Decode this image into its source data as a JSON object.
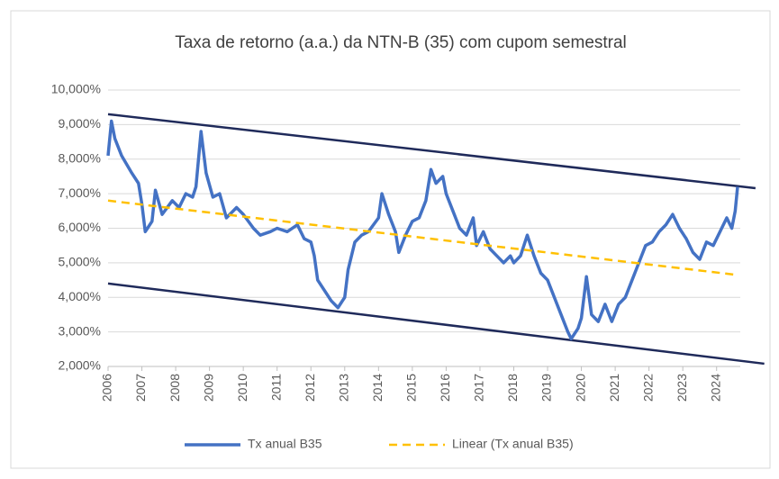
{
  "chart_data": {
    "type": "line",
    "title": "Taxa de retorno (a.a.) da NTN-B (35) com cupom semestral",
    "xlim": [
      2006,
      2024.7
    ],
    "xticks": [
      2006,
      2007,
      2008,
      2009,
      2010,
      2011,
      2012,
      2013,
      2014,
      2015,
      2016,
      2017,
      2018,
      2019,
      2020,
      2021,
      2022,
      2023,
      2024
    ],
    "ylim": [
      2,
      10
    ],
    "yticks": [
      {
        "value": 2,
        "label": "2,000%"
      },
      {
        "value": 3,
        "label": "3,000%"
      },
      {
        "value": 4,
        "label": "4,000%"
      },
      {
        "value": 5,
        "label": "5,000%"
      },
      {
        "value": 6,
        "label": "6,000%"
      },
      {
        "value": 7,
        "label": "7,000%"
      },
      {
        "value": 8,
        "label": "8,000%"
      },
      {
        "value": 9,
        "label": "9,000%"
      },
      {
        "value": 10,
        "label": "10,000%"
      }
    ],
    "grid": true,
    "legend": "bottom",
    "series": [
      {
        "name": "Tx anual B35",
        "color": "#4472c4",
        "style": "solid",
        "x": [
          2006.0,
          2006.1,
          2006.2,
          2006.4,
          2006.7,
          2006.9,
          2007.0,
          2007.1,
          2007.3,
          2007.4,
          2007.6,
          2007.9,
          2008.1,
          2008.3,
          2008.5,
          2008.6,
          2008.75,
          2008.9,
          2009.1,
          2009.3,
          2009.5,
          2009.8,
          2010.0,
          2010.3,
          2010.5,
          2010.8,
          2011.0,
          2011.3,
          2011.6,
          2011.8,
          2012.0,
          2012.1,
          2012.2,
          2012.4,
          2012.6,
          2012.8,
          2013.0,
          2013.1,
          2013.3,
          2013.5,
          2013.7,
          2014.0,
          2014.1,
          2014.3,
          2014.5,
          2014.6,
          2014.8,
          2015.0,
          2015.2,
          2015.4,
          2015.55,
          2015.7,
          2015.9,
          2016.0,
          2016.2,
          2016.4,
          2016.6,
          2016.8,
          2016.9,
          2017.1,
          2017.3,
          2017.5,
          2017.7,
          2017.9,
          2018.0,
          2018.2,
          2018.4,
          2018.6,
          2018.8,
          2019.0,
          2019.2,
          2019.4,
          2019.6,
          2019.7,
          2019.9,
          2020.0,
          2020.15,
          2020.3,
          2020.5,
          2020.7,
          2020.9,
          2021.1,
          2021.3,
          2021.5,
          2021.7,
          2021.9,
          2022.1,
          2022.3,
          2022.5,
          2022.7,
          2022.9,
          2023.1,
          2023.3,
          2023.5,
          2023.7,
          2023.9,
          2024.1,
          2024.3,
          2024.45,
          2024.55,
          2024.62
        ],
        "values": [
          8.1,
          9.1,
          8.6,
          8.1,
          7.6,
          7.3,
          6.7,
          5.9,
          6.2,
          7.1,
          6.4,
          6.8,
          6.6,
          7.0,
          6.9,
          7.2,
          8.8,
          7.6,
          6.9,
          7.0,
          6.3,
          6.6,
          6.4,
          6.0,
          5.8,
          5.9,
          6.0,
          5.9,
          6.1,
          5.7,
          5.6,
          5.2,
          4.5,
          4.2,
          3.9,
          3.7,
          4.0,
          4.8,
          5.6,
          5.8,
          5.9,
          6.3,
          7.0,
          6.4,
          5.9,
          5.3,
          5.8,
          6.2,
          6.3,
          6.8,
          7.7,
          7.3,
          7.5,
          7.0,
          6.5,
          6.0,
          5.8,
          6.3,
          5.5,
          5.9,
          5.4,
          5.2,
          5.0,
          5.2,
          5.0,
          5.2,
          5.8,
          5.2,
          4.7,
          4.5,
          4.0,
          3.5,
          3.0,
          2.8,
          3.1,
          3.4,
          4.6,
          3.5,
          3.3,
          3.8,
          3.3,
          3.8,
          4.0,
          4.5,
          5.0,
          5.5,
          5.6,
          5.9,
          6.1,
          6.4,
          6.0,
          5.7,
          5.3,
          5.1,
          5.6,
          5.5,
          5.9,
          6.3,
          6.0,
          6.5,
          7.2
        ]
      },
      {
        "name": "Linear (Tx anual B35)",
        "color": "#ffc000",
        "style": "dashed",
        "x": [
          2006.0,
          2024.6
        ],
        "values": [
          6.8,
          4.65
        ]
      }
    ],
    "channel_lines": [
      {
        "color": "#1f2a5a",
        "x": [
          2006.0,
          2025.15
        ],
        "values": [
          9.3,
          7.16
        ]
      },
      {
        "color": "#1f2a5a",
        "x": [
          2006.0,
          2025.41
        ],
        "values": [
          4.4,
          2.08
        ]
      }
    ]
  }
}
